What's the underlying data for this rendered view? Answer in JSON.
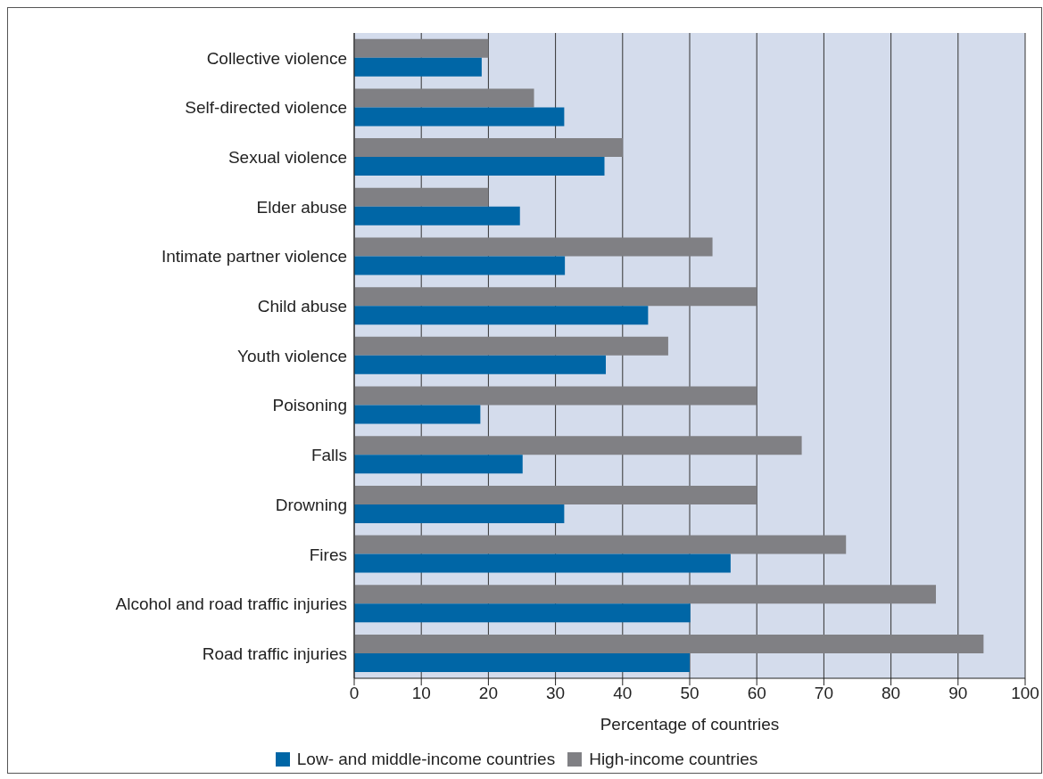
{
  "chart_data": {
    "type": "bar",
    "orientation": "horizontal",
    "xlabel": "Percentage of countries",
    "categories": [
      "Collective violence",
      "Self-directed violence",
      "Sexual violence",
      "Elder abuse",
      "Intimate partner violence",
      "Child abuse",
      "Youth violence",
      "Poisoning",
      "Falls",
      "Drowning",
      "Fires",
      "Alcohol and road traffic injuries",
      "Road traffic injuries"
    ],
    "series": [
      {
        "name": "Low- and middle-income countries",
        "color": "#0066a6",
        "values": [
          19,
          31.3,
          37.3,
          24.7,
          31.4,
          43.8,
          37.5,
          18.8,
          25.1,
          31.3,
          56.1,
          50.1,
          50
        ]
      },
      {
        "name": "High-income countries",
        "color": "#808084",
        "values": [
          20,
          26.8,
          40,
          20,
          53.4,
          60,
          46.8,
          60,
          66.7,
          60,
          73.3,
          86.7,
          93.8
        ]
      }
    ],
    "xlim": [
      0,
      100
    ],
    "xticks": [
      0,
      10,
      20,
      30,
      40,
      50,
      60,
      70,
      80,
      90,
      100
    ],
    "grid": "x",
    "legend": "bottom"
  }
}
